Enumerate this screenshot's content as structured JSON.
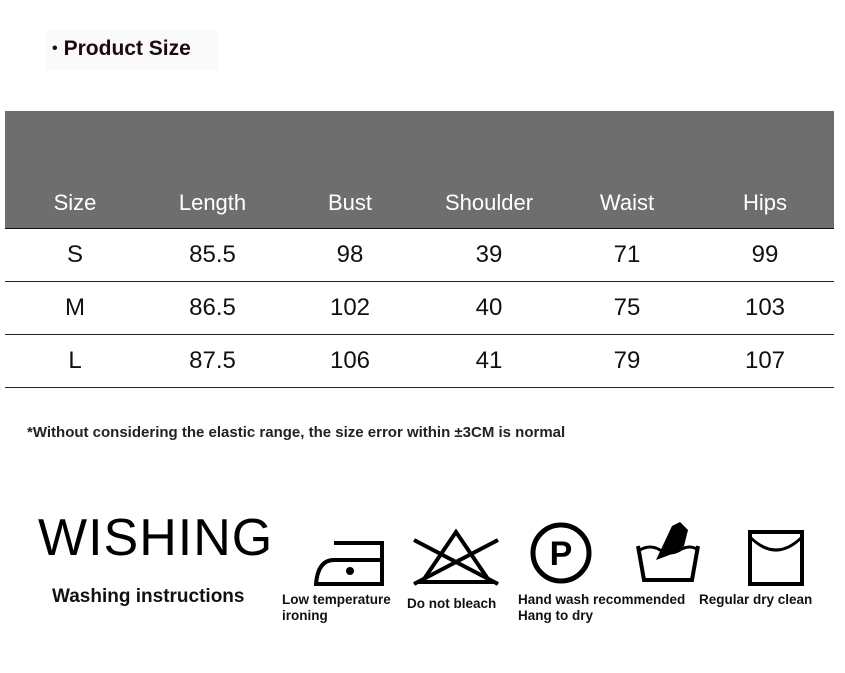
{
  "title": "Product Size",
  "table": {
    "headers": [
      "Size",
      "Length",
      "Bust",
      "Shoulder",
      "Waist",
      "Hips"
    ],
    "rows": [
      [
        "S",
        "85.5",
        "98",
        "39",
        "71",
        "99"
      ],
      [
        "M",
        "86.5",
        "102",
        "40",
        "75",
        "103"
      ],
      [
        "L",
        "87.5",
        "106",
        "41",
        "79",
        "107"
      ]
    ],
    "header_bg": "#6e6e6e"
  },
  "note": "*Without considering the elastic range, the size error within ±3CM is normal",
  "care": {
    "brand": "WISHING",
    "heading": "Washing instructions",
    "items": [
      {
        "icon": "iron-low-temp-icon",
        "label": "Low temperature ironing"
      },
      {
        "icon": "no-bleach-icon",
        "label": "Do not bleach"
      },
      {
        "icon": "dry-clean-p-icon",
        "label": "Hand wash recommended"
      },
      {
        "icon": "hand-wash-icon",
        "label": "Hang to dry"
      },
      {
        "icon": "hang-dry-icon",
        "label": "Regular dry clean"
      }
    ]
  }
}
